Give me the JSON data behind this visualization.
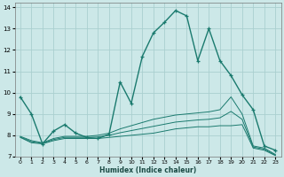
{
  "xlabel": "Humidex (Indice chaleur)",
  "bg_color": "#cce8e8",
  "grid_color": "#aacfcf",
  "line_color": "#1a7a6e",
  "xlim": [
    -0.5,
    23.5
  ],
  "ylim": [
    7,
    14.2
  ],
  "xticks": [
    0,
    1,
    2,
    3,
    4,
    5,
    6,
    7,
    8,
    9,
    10,
    11,
    12,
    13,
    14,
    15,
    16,
    17,
    18,
    19,
    20,
    21,
    22,
    23
  ],
  "yticks": [
    7,
    8,
    9,
    10,
    11,
    12,
    13,
    14
  ],
  "curve1_x": [
    0,
    1,
    2,
    3,
    4,
    5,
    6,
    7,
    8,
    9,
    10,
    11,
    12,
    13,
    14,
    15,
    16,
    17,
    18,
    19,
    20,
    21,
    22,
    23
  ],
  "curve1_y": [
    9.8,
    9.0,
    7.6,
    8.2,
    8.5,
    8.1,
    7.9,
    7.85,
    8.05,
    10.5,
    9.5,
    11.7,
    12.8,
    13.3,
    13.85,
    13.6,
    11.5,
    13.0,
    11.5,
    10.8,
    9.9,
    9.2,
    7.5,
    7.3
  ],
  "curve2_x": [
    0,
    1,
    2,
    3,
    4,
    5,
    6,
    7,
    8,
    9,
    10,
    11,
    12,
    13,
    14,
    15,
    16,
    17,
    18,
    19,
    20,
    21,
    22,
    23
  ],
  "curve2_y": [
    7.9,
    7.65,
    7.6,
    7.75,
    7.85,
    7.85,
    7.85,
    7.85,
    7.9,
    7.95,
    8.0,
    8.05,
    8.1,
    8.2,
    8.3,
    8.35,
    8.4,
    8.4,
    8.45,
    8.45,
    8.5,
    7.4,
    7.3,
    7.05
  ],
  "curve3_x": [
    0,
    1,
    2,
    3,
    4,
    5,
    6,
    7,
    8,
    9,
    10,
    11,
    12,
    13,
    14,
    15,
    16,
    17,
    18,
    19,
    20,
    21,
    22,
    23
  ],
  "curve3_y": [
    7.95,
    7.75,
    7.65,
    7.85,
    7.95,
    7.95,
    7.95,
    8.0,
    8.1,
    8.3,
    8.45,
    8.6,
    8.75,
    8.85,
    8.95,
    9.0,
    9.05,
    9.1,
    9.2,
    9.8,
    9.0,
    7.5,
    7.4,
    7.1
  ],
  "curve4_x": [
    0,
    1,
    2,
    3,
    4,
    5,
    6,
    7,
    8,
    9,
    10,
    11,
    12,
    13,
    14,
    15,
    16,
    17,
    18,
    19,
    20,
    21,
    22,
    23
  ],
  "curve4_y": [
    7.92,
    7.7,
    7.62,
    7.8,
    7.9,
    7.9,
    7.9,
    7.92,
    8.0,
    8.12,
    8.22,
    8.32,
    8.42,
    8.52,
    8.62,
    8.67,
    8.72,
    8.75,
    8.82,
    9.12,
    8.75,
    7.45,
    7.35,
    7.07
  ]
}
